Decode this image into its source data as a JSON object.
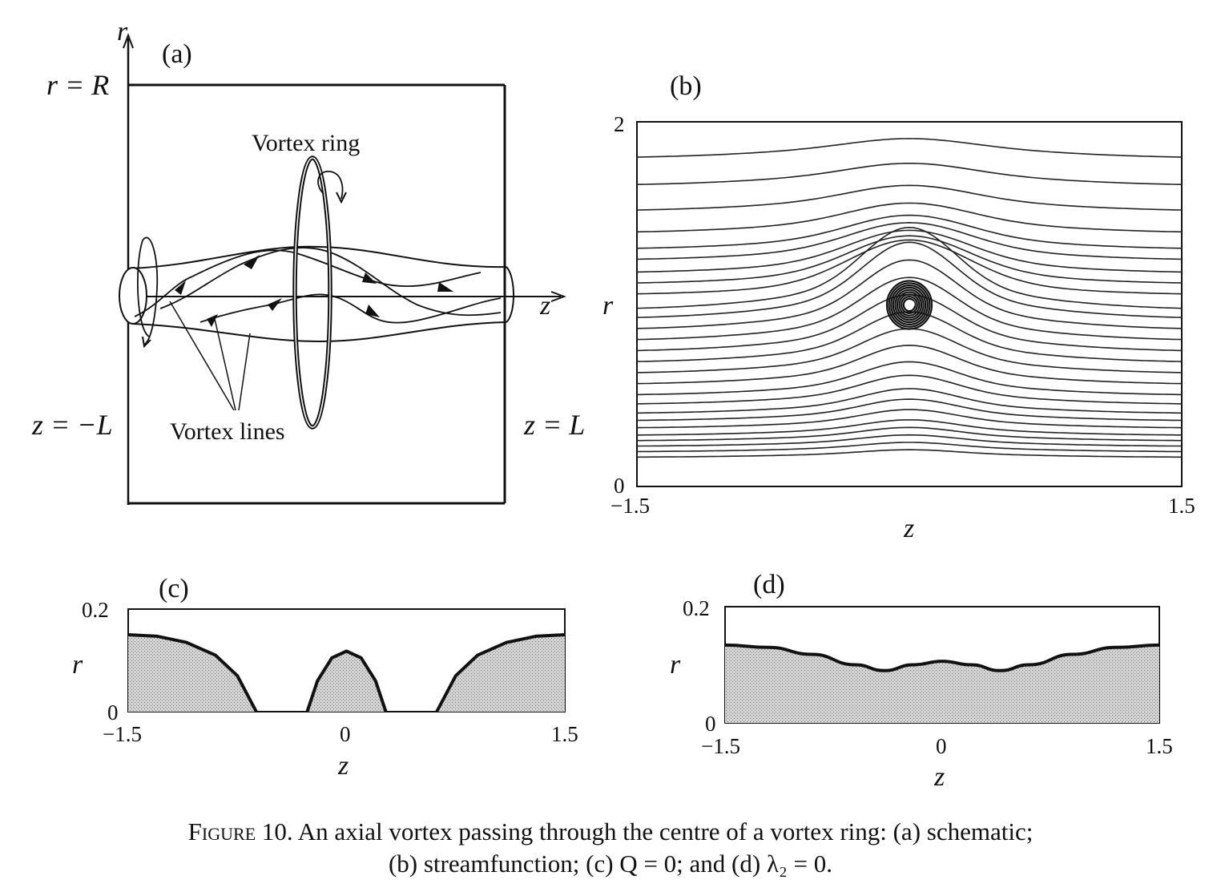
{
  "panel_a": {
    "label": "(a)",
    "r_axis": "r",
    "z_axis": "z",
    "top_boundary": "r = R",
    "left_boundary": "z = −L",
    "right_boundary": "z = L",
    "vortex_ring_label": "Vortex ring",
    "vortex_lines_label": "Vortex lines"
  },
  "chart_data": [
    {
      "panel": "b",
      "label": "(b)",
      "type": "line",
      "description_kind": "streamlines",
      "xlabel": "z",
      "ylabel": "r",
      "xlim": [
        -1.5,
        1.5
      ],
      "ylim": [
        0,
        2
      ],
      "x_ticks": [
        "−1.5",
        "1.5"
      ],
      "y_ticks": [
        "0",
        "2"
      ],
      "ring_center": {
        "z": 0.0,
        "r": 1.0
      },
      "streamline_base_r": [
        0.16,
        0.19,
        0.22,
        0.25,
        0.28,
        0.32,
        0.36,
        0.4,
        0.45,
        0.5,
        0.56,
        0.62,
        0.68,
        0.74,
        0.8,
        0.86,
        0.92,
        0.97,
        1.05,
        1.11,
        1.17,
        1.24,
        1.3,
        1.39,
        1.51,
        1.65,
        1.8
      ]
    },
    {
      "panel": "c",
      "label": "(c)",
      "type": "area",
      "xlabel": "z",
      "ylabel": "r",
      "xlim": [
        -1.5,
        1.5
      ],
      "ylim": [
        0,
        0.2
      ],
      "x_ticks": [
        "−1.5",
        "0",
        "1.5"
      ],
      "y_ticks": [
        "0",
        "0.2"
      ],
      "regions": [
        {
          "z": [
            -1.5,
            -1.3,
            -1.1,
            -0.9,
            -0.75,
            -0.62
          ],
          "r": [
            0.15,
            0.147,
            0.135,
            0.11,
            0.07,
            0.0
          ]
        },
        {
          "z": [
            -0.27,
            -0.2,
            -0.1,
            0.0,
            0.1,
            0.2,
            0.27
          ],
          "r": [
            0.0,
            0.06,
            0.105,
            0.118,
            0.105,
            0.06,
            0.0
          ]
        },
        {
          "z": [
            0.62,
            0.75,
            0.9,
            1.1,
            1.3,
            1.5
          ],
          "r": [
            0.0,
            0.07,
            0.11,
            0.135,
            0.147,
            0.15
          ]
        }
      ]
    },
    {
      "panel": "d",
      "label": "(d)",
      "type": "area",
      "xlabel": "z",
      "ylabel": "r",
      "xlim": [
        -1.5,
        1.5
      ],
      "ylim": [
        0,
        0.2
      ],
      "x_ticks": [
        "−1.5",
        "0",
        "1.5"
      ],
      "y_ticks": [
        "0",
        "0.2"
      ],
      "boundary": {
        "z": [
          -1.5,
          -1.2,
          -0.9,
          -0.6,
          -0.4,
          -0.2,
          0.0,
          0.2,
          0.4,
          0.6,
          0.9,
          1.2,
          1.5
        ],
        "r": [
          0.134,
          0.13,
          0.118,
          0.1,
          0.09,
          0.1,
          0.106,
          0.1,
          0.09,
          0.1,
          0.118,
          0.13,
          0.134
        ]
      }
    }
  ],
  "caption": {
    "figure": "Figure 10.",
    "text_line1": "An axial vortex passing through the centre of a vortex ring: (a) schematic;",
    "text_line2": "(b) streamfunction; (c) Q = 0; and (d) λ₂ = 0."
  }
}
